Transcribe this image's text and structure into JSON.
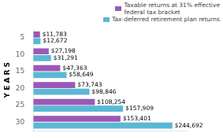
{
  "chart_data": {
    "type": "bar",
    "orientation": "horizontal",
    "ylabel": "Y E A R S",
    "categories": [
      "5",
      "10",
      "15",
      "20",
      "25",
      "30"
    ],
    "series": [
      {
        "name": "Taxable returns at 31% effective\nfederal tax bracket",
        "color": "#9b59b6",
        "values": [
          11783,
          27198,
          47363,
          73743,
          108254,
          153401
        ],
        "value_labels": [
          "$11,783",
          "$27,198",
          "$47,363",
          "$73,743",
          "$108,254",
          "$153,401"
        ]
      },
      {
        "name": "Tax-deferred retirement plan returns",
        "color": "#5bb8d4",
        "values": [
          12672,
          31291,
          58649,
          98846,
          157909,
          244692
        ],
        "value_labels": [
          "$12,672",
          "$31,291",
          "$58,649",
          "$98,846",
          "$157,909",
          "$244,692"
        ]
      }
    ],
    "xlim": [
      0,
      270000
    ],
    "xticks": [],
    "grid": false,
    "legend": "upper right",
    "data_labels": true,
    "tick_labels": "y"
  }
}
